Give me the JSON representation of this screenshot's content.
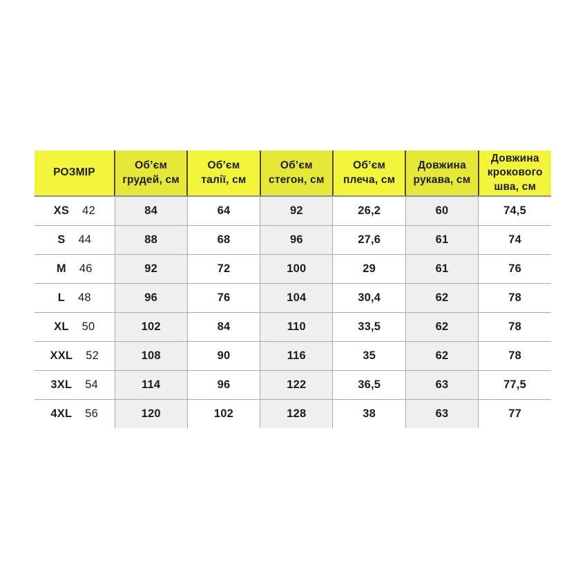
{
  "colors": {
    "header_bg": "#f3f53a",
    "header_bg_striped": "#e6e838",
    "body_bg": "#ffffff",
    "body_bg_striped": "#efefef",
    "header_divider": "#4a4a20",
    "header_bottom_border": "#8f8f8f",
    "grid_line": "#a9a9a9",
    "text": "#1c1c1c"
  },
  "chart_data": {
    "type": "table",
    "title": "",
    "columns": [
      {
        "key": "size",
        "label": "РОЗМІР",
        "striped": false
      },
      {
        "key": "chest",
        "label": "Об’єм\nгрудей, см",
        "striped": true
      },
      {
        "key": "waist",
        "label": "Об’єм\nталії, см",
        "striped": false
      },
      {
        "key": "hips",
        "label": "Об’єм\nстегон, см",
        "striped": true
      },
      {
        "key": "shoulder",
        "label": "Об’єм\nплеча, см",
        "striped": false
      },
      {
        "key": "sleeve",
        "label": "Довжина\nрукава, см",
        "striped": true
      },
      {
        "key": "inseam",
        "label": "Довжина\nкрокового\nшва, см",
        "striped": false
      }
    ],
    "rows": [
      {
        "size_label": "XS",
        "size_value": "42",
        "values": [
          "84",
          "64",
          "92",
          "26,2",
          "60",
          "74,5"
        ]
      },
      {
        "size_label": "S",
        "size_value": "44",
        "values": [
          "88",
          "68",
          "96",
          "27,6",
          "61",
          "74"
        ]
      },
      {
        "size_label": "M",
        "size_value": "46",
        "values": [
          "92",
          "72",
          "100",
          "29",
          "61",
          "76"
        ]
      },
      {
        "size_label": "L",
        "size_value": "48",
        "values": [
          "96",
          "76",
          "104",
          "30,4",
          "62",
          "78"
        ]
      },
      {
        "size_label": "XL",
        "size_value": "50",
        "values": [
          "102",
          "84",
          "110",
          "33,5",
          "62",
          "78"
        ]
      },
      {
        "size_label": "XXL",
        "size_value": "52",
        "values": [
          "108",
          "90",
          "116",
          "35",
          "62",
          "78"
        ]
      },
      {
        "size_label": "3XL",
        "size_value": "54",
        "values": [
          "114",
          "96",
          "122",
          "36,5",
          "63",
          "77,5"
        ]
      },
      {
        "size_label": "4XL",
        "size_value": "56",
        "values": [
          "120",
          "102",
          "128",
          "38",
          "63",
          "77"
        ]
      }
    ]
  }
}
